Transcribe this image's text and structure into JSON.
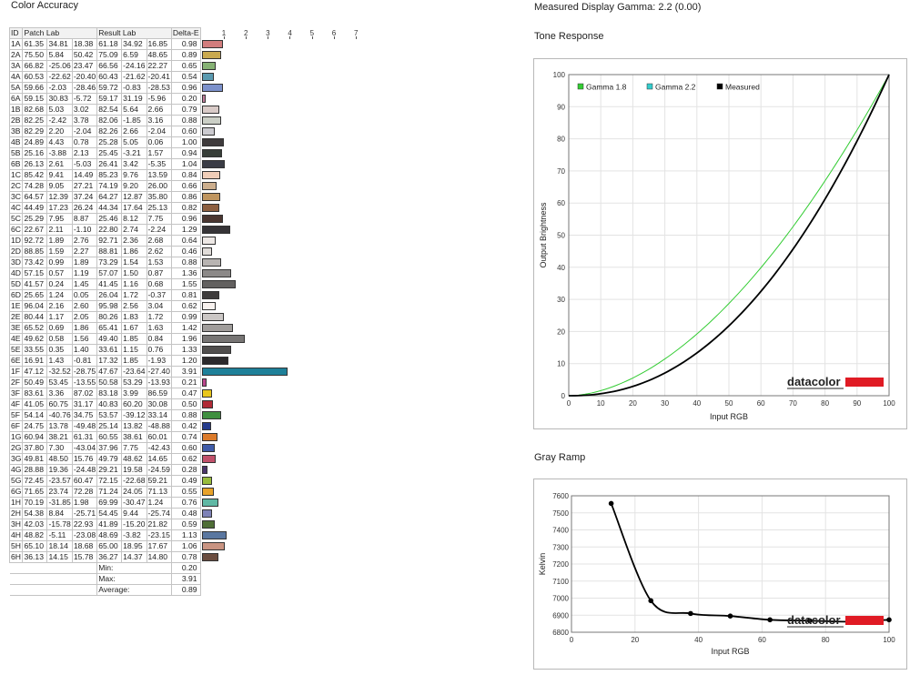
{
  "color_accuracy": {
    "title": "Color Accuracy",
    "headers": {
      "id": "ID",
      "patch": "Patch Lab",
      "result": "Result Lab",
      "delta": "Delta-E"
    },
    "scale_ticks": [
      "1",
      "2",
      "3",
      "4",
      "5",
      "6",
      "7"
    ],
    "rows": [
      {
        "id": "1A",
        "p": [
          "61.35",
          "34.81",
          "18.38"
        ],
        "r": [
          "61.18",
          "34.92",
          "16.85"
        ],
        "de": "0.98",
        "color": "#d27d7d"
      },
      {
        "id": "2A",
        "p": [
          "75.50",
          "5.84",
          "50.42"
        ],
        "r": [
          "75.09",
          "6.59",
          "48.65"
        ],
        "de": "0.89",
        "color": "#c9a94f"
      },
      {
        "id": "3A",
        "p": [
          "66.82",
          "-25.06",
          "23.47"
        ],
        "r": [
          "66.56",
          "-24.16",
          "22.27"
        ],
        "de": "0.65",
        "color": "#86b274"
      },
      {
        "id": "4A",
        "p": [
          "60.53",
          "-22.62",
          "-20.40"
        ],
        "r": [
          "60.43",
          "-21.62",
          "-20.41"
        ],
        "de": "0.54",
        "color": "#5a9ab0"
      },
      {
        "id": "5A",
        "p": [
          "59.66",
          "-2.03",
          "-28.46"
        ],
        "r": [
          "59.72",
          "-0.83",
          "-28.53"
        ],
        "de": "0.96",
        "color": "#7c91cb"
      },
      {
        "id": "6A",
        "p": [
          "59.15",
          "30.83",
          "-5.72"
        ],
        "r": [
          "59.17",
          "31.19",
          "-5.96"
        ],
        "de": "0.20",
        "color": "#c27d9c"
      },
      {
        "id": "1B",
        "p": [
          "82.68",
          "5.03",
          "3.02"
        ],
        "r": [
          "82.54",
          "5.64",
          "2.66"
        ],
        "de": "0.79",
        "color": "#d9cbc8"
      },
      {
        "id": "2B",
        "p": [
          "82.25",
          "-2.42",
          "3.78"
        ],
        "r": [
          "82.06",
          "-1.85",
          "3.16"
        ],
        "de": "0.88",
        "color": "#cbcfc6"
      },
      {
        "id": "3B",
        "p": [
          "82.29",
          "2.20",
          "-2.04"
        ],
        "r": [
          "82.26",
          "2.66",
          "-2.04"
        ],
        "de": "0.60",
        "color": "#cccbd0"
      },
      {
        "id": "4B",
        "p": [
          "24.89",
          "4.43",
          "0.78"
        ],
        "r": [
          "25.28",
          "5.05",
          "0.06"
        ],
        "de": "1.00",
        "color": "#3f3b3c"
      },
      {
        "id": "5B",
        "p": [
          "25.16",
          "-3.88",
          "2.13"
        ],
        "r": [
          "25.45",
          "-3.21",
          "1.57"
        ],
        "de": "0.94",
        "color": "#373e38"
      },
      {
        "id": "6B",
        "p": [
          "26.13",
          "2.61",
          "-5.03"
        ],
        "r": [
          "26.41",
          "3.42",
          "-5.35"
        ],
        "de": "1.04",
        "color": "#3a3c45"
      },
      {
        "id": "1C",
        "p": [
          "85.42",
          "9.41",
          "14.49"
        ],
        "r": [
          "85.23",
          "9.76",
          "13.59"
        ],
        "de": "0.84",
        "color": "#efcdb8"
      },
      {
        "id": "2C",
        "p": [
          "74.28",
          "9.05",
          "27.21"
        ],
        "r": [
          "74.19",
          "9.20",
          "26.00"
        ],
        "de": "0.66",
        "color": "#ccae8d"
      },
      {
        "id": "3C",
        "p": [
          "64.57",
          "12.39",
          "37.24"
        ],
        "r": [
          "64.27",
          "12.87",
          "35.80"
        ],
        "de": "0.86",
        "color": "#bf955f"
      },
      {
        "id": "4C",
        "p": [
          "44.49",
          "17.23",
          "26.24"
        ],
        "r": [
          "44.34",
          "17.64",
          "25.13"
        ],
        "de": "0.82",
        "color": "#8d5f40"
      },
      {
        "id": "5C",
        "p": [
          "25.29",
          "7.95",
          "8.87"
        ],
        "r": [
          "25.46",
          "8.12",
          "7.75"
        ],
        "de": "0.96",
        "color": "#4a3630"
      },
      {
        "id": "6C",
        "p": [
          "22.67",
          "2.11",
          "-1.10"
        ],
        "r": [
          "22.80",
          "2.74",
          "-2.24"
        ],
        "de": "1.29",
        "color": "#363437"
      },
      {
        "id": "1D",
        "p": [
          "92.72",
          "1.89",
          "2.76"
        ],
        "r": [
          "92.71",
          "2.36",
          "2.68"
        ],
        "de": "0.64",
        "color": "#ede8e5"
      },
      {
        "id": "2D",
        "p": [
          "88.85",
          "1.59",
          "2.27"
        ],
        "r": [
          "88.81",
          "1.86",
          "2.62"
        ],
        "de": "0.46",
        "color": "#e0dcd9"
      },
      {
        "id": "3D",
        "p": [
          "73.42",
          "0.99",
          "1.89"
        ],
        "r": [
          "73.29",
          "1.54",
          "1.53"
        ],
        "de": "0.88",
        "color": "#b8b4b2"
      },
      {
        "id": "4D",
        "p": [
          "57.15",
          "0.57",
          "1.19"
        ],
        "r": [
          "57.07",
          "1.50",
          "0.87"
        ],
        "de": "1.36",
        "color": "#8c8988"
      },
      {
        "id": "5D",
        "p": [
          "41.57",
          "0.24",
          "1.45"
        ],
        "r": [
          "41.45",
          "1.16",
          "0.68"
        ],
        "de": "1.55",
        "color": "#636160"
      },
      {
        "id": "6D",
        "p": [
          "25.65",
          "1.24",
          "0.05"
        ],
        "r": [
          "26.04",
          "1.72",
          "-0.37"
        ],
        "de": "0.81",
        "color": "#3e3c3c"
      },
      {
        "id": "1E",
        "p": [
          "96.04",
          "2.16",
          "2.60"
        ],
        "r": [
          "95.98",
          "2.56",
          "3.04"
        ],
        "de": "0.62",
        "color": "#f8f2ef"
      },
      {
        "id": "2E",
        "p": [
          "80.44",
          "1.17",
          "2.05"
        ],
        "r": [
          "80.26",
          "1.83",
          "1.72"
        ],
        "de": "0.99",
        "color": "#cbc7c5"
      },
      {
        "id": "3E",
        "p": [
          "65.52",
          "0.69",
          "1.86"
        ],
        "r": [
          "65.41",
          "1.67",
          "1.63"
        ],
        "de": "1.42",
        "color": "#a09d9b"
      },
      {
        "id": "4E",
        "p": [
          "49.62",
          "0.58",
          "1.56"
        ],
        "r": [
          "49.40",
          "1.85",
          "0.84"
        ],
        "de": "1.96",
        "color": "#777574"
      },
      {
        "id": "5E",
        "p": [
          "33.55",
          "0.35",
          "1.40"
        ],
        "r": [
          "33.61",
          "1.15",
          "0.76"
        ],
        "de": "1.33",
        "color": "#504e4d"
      },
      {
        "id": "6E",
        "p": [
          "16.91",
          "1.43",
          "-0.81"
        ],
        "r": [
          "17.32",
          "1.85",
          "-1.93"
        ],
        "de": "1.20",
        "color": "#2b292b"
      },
      {
        "id": "1F",
        "p": [
          "47.12",
          "-32.52",
          "-28.75"
        ],
        "r": [
          "47.67",
          "-23.64",
          "-27.40"
        ],
        "de": "3.91",
        "color": "#1e8099"
      },
      {
        "id": "2F",
        "p": [
          "50.49",
          "53.45",
          "-13.55"
        ],
        "r": [
          "50.58",
          "53.29",
          "-13.93"
        ],
        "de": "0.21",
        "color": "#b8458b"
      },
      {
        "id": "3F",
        "p": [
          "83.61",
          "3.36",
          "87.02"
        ],
        "r": [
          "83.18",
          "3.99",
          "86.59"
        ],
        "de": "0.47",
        "color": "#e9c61b"
      },
      {
        "id": "4F",
        "p": [
          "41.05",
          "60.75",
          "31.17"
        ],
        "r": [
          "40.83",
          "60.20",
          "30.08"
        ],
        "de": "0.50",
        "color": "#b02a35"
      },
      {
        "id": "5F",
        "p": [
          "54.14",
          "-40.76",
          "34.75"
        ],
        "r": [
          "53.57",
          "-39.12",
          "33.14"
        ],
        "de": "0.88",
        "color": "#3f8f3f"
      },
      {
        "id": "6F",
        "p": [
          "24.75",
          "13.78",
          "-49.48"
        ],
        "r": [
          "25.14",
          "13.82",
          "-48.88"
        ],
        "de": "0.42",
        "color": "#243b8c"
      },
      {
        "id": "1G",
        "p": [
          "60.94",
          "38.21",
          "61.31"
        ],
        "r": [
          "60.55",
          "38.61",
          "60.01"
        ],
        "de": "0.74",
        "color": "#db7a2a"
      },
      {
        "id": "2G",
        "p": [
          "37.80",
          "7.30",
          "-43.04"
        ],
        "r": [
          "37.96",
          "7.75",
          "-42.43"
        ],
        "de": "0.60",
        "color": "#3f5ba8"
      },
      {
        "id": "3G",
        "p": [
          "49.81",
          "48.50",
          "15.76"
        ],
        "r": [
          "49.79",
          "48.62",
          "14.65"
        ],
        "de": "0.62",
        "color": "#c1506a"
      },
      {
        "id": "4G",
        "p": [
          "28.88",
          "19.36",
          "-24.48"
        ],
        "r": [
          "29.21",
          "19.58",
          "-24.59"
        ],
        "de": "0.28",
        "color": "#4b346a"
      },
      {
        "id": "5G",
        "p": [
          "72.45",
          "-23.57",
          "60.47"
        ],
        "r": [
          "72.15",
          "-22.68",
          "59.21"
        ],
        "de": "0.49",
        "color": "#98bc3c"
      },
      {
        "id": "6G",
        "p": [
          "71.65",
          "23.74",
          "72.28"
        ],
        "r": [
          "71.24",
          "24.05",
          "71.13"
        ],
        "de": "0.55",
        "color": "#e8a22a"
      },
      {
        "id": "1H",
        "p": [
          "70.19",
          "-31.85",
          "1.98"
        ],
        "r": [
          "69.99",
          "-30.47",
          "1.24"
        ],
        "de": "0.76",
        "color": "#60b8a4"
      },
      {
        "id": "2H",
        "p": [
          "54.38",
          "8.84",
          "-25.71"
        ],
        "r": [
          "54.45",
          "9.44",
          "-25.74"
        ],
        "de": "0.48",
        "color": "#7e82b7"
      },
      {
        "id": "3H",
        "p": [
          "42.03",
          "-15.78",
          "22.93"
        ],
        "r": [
          "41.89",
          "-15.20",
          "21.82"
        ],
        "de": "0.59",
        "color": "#4f6e36"
      },
      {
        "id": "4H",
        "p": [
          "48.82",
          "-5.11",
          "-23.08"
        ],
        "r": [
          "48.69",
          "-3.82",
          "-23.15"
        ],
        "de": "1.13",
        "color": "#5a77a0"
      },
      {
        "id": "5H",
        "p": [
          "65.10",
          "18.14",
          "18.68"
        ],
        "r": [
          "65.00",
          "18.95",
          "17.67"
        ],
        "de": "1.06",
        "color": "#c99482"
      },
      {
        "id": "6H",
        "p": [
          "36.13",
          "14.15",
          "15.78"
        ],
        "r": [
          "36.27",
          "14.37",
          "14.80"
        ],
        "de": "0.78",
        "color": "#6b4d40"
      }
    ],
    "summary": [
      {
        "label": "Min:",
        "value": "0.20"
      },
      {
        "label": "Max:",
        "value": "3.91"
      },
      {
        "label": "Average:",
        "value": "0.89"
      }
    ]
  },
  "gamma_heading": "Measured Display Gamma: 2.2 (0.00)",
  "tone_title": "Tone Response",
  "gray_title": "Gray Ramp",
  "logo_text": "datacolor",
  "logo_color": "#e01b24",
  "chart_data": [
    {
      "type": "line",
      "title": "Tone Response",
      "xlabel": "Input RGB",
      "ylabel": "Output Brightness",
      "xlim": [
        0,
        100
      ],
      "ylim": [
        0,
        100
      ],
      "xticks": [
        0,
        10,
        20,
        30,
        40,
        50,
        60,
        70,
        80,
        90,
        100
      ],
      "yticks": [
        0,
        10,
        20,
        30,
        40,
        50,
        60,
        70,
        80,
        90,
        100
      ],
      "grid": true,
      "legend": "top-left",
      "series": [
        {
          "name": "Gamma 1.8",
          "color": "#33cc33",
          "gamma": 1.8
        },
        {
          "name": "Gamma 2.2",
          "color": "#33cccc",
          "gamma": 2.2
        },
        {
          "name": "Measured",
          "color": "#000000",
          "gamma": 2.2
        }
      ]
    },
    {
      "type": "line",
      "title": "Gray Ramp",
      "xlabel": "Input RGB",
      "ylabel": "Kelvin",
      "xlim": [
        0,
        100
      ],
      "ylim": [
        6800,
        7600
      ],
      "xticks": [
        0,
        20,
        40,
        60,
        80,
        100
      ],
      "yticks": [
        6800,
        6900,
        7000,
        7100,
        7200,
        7300,
        7400,
        7500,
        7600
      ],
      "grid": true,
      "x": [
        12.5,
        25,
        37.5,
        50,
        62.5,
        75,
        87.5,
        100
      ],
      "values": [
        7555,
        6985,
        6910,
        6895,
        6873,
        6868,
        6862,
        6873
      ]
    }
  ]
}
